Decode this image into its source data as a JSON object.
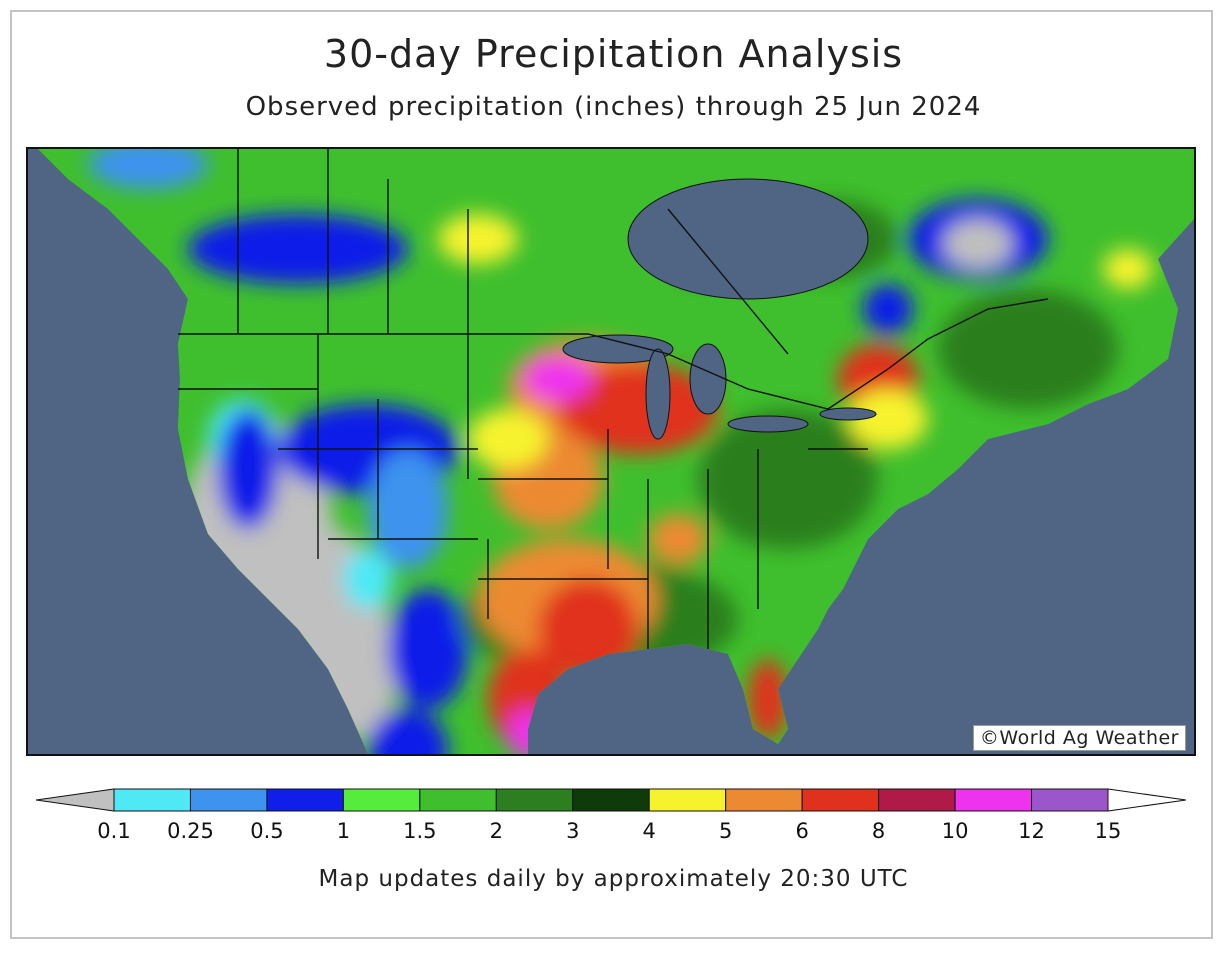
{
  "title": "30-day Precipitation Analysis",
  "subtitle": "Observed precipitation (inches) through 25 Jun 2024",
  "credit": "©World Ag Weather",
  "footnote": "Map updates daily by approximately 20:30 UTC",
  "colors": {
    "ocean": "#4f6583",
    "lake": "#4f6583",
    "border": "#111111"
  },
  "legend": {
    "under_color": "#c0c0c0",
    "over_color": "#ffffff",
    "ticks": [
      "0.1",
      "0.25",
      "0.5",
      "1",
      "1.5",
      "2",
      "3",
      "4",
      "5",
      "6",
      "8",
      "10",
      "12",
      "15"
    ],
    "colors": [
      "#4ee9f5",
      "#3d93ee",
      "#0f1ee8",
      "#55ec3c",
      "#3fbf2e",
      "#2b7f1f",
      "#0f3a0a",
      "#f6f32e",
      "#ec8a33",
      "#e0301e",
      "#b01a48",
      "#ee33ee",
      "#9b56cc"
    ]
  },
  "chart_data": {
    "type": "heatmap",
    "title": "30-day Precipitation Analysis",
    "subtitle": "Observed precipitation (inches) through 25 Jun 2024",
    "region": "North America",
    "scale_thresholds_inches": [
      0.1,
      0.25,
      0.5,
      1,
      1.5,
      2,
      3,
      4,
      5,
      6,
      8,
      10,
      12,
      15
    ],
    "legend_placement": "bottom"
  }
}
